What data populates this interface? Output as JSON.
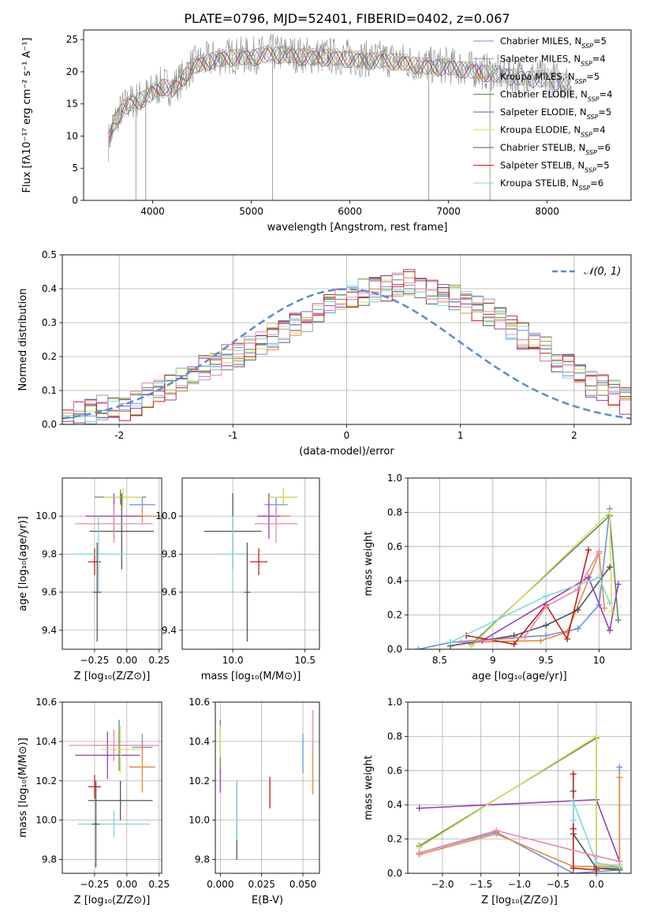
{
  "figure": {
    "title": "PLATE=0796, MJD=52401, FIBERID=0402, z=0.067"
  },
  "colors": {
    "series": [
      "#6f8fe0",
      "#9a9a9a",
      "#e8893a",
      "#5a8f5a",
      "#9b3cb8",
      "#d8e05a",
      "#555555",
      "#c0201a",
      "#7fd8e0",
      "#e88ab0"
    ],
    "gauss": "#5b8bd6"
  },
  "chart_data": [
    {
      "type": "line",
      "xlabel": "wavelength [Angstrom, rest frame]",
      "ylabel": "Flux [fλ10⁻¹⁷ erg cm⁻² s⁻¹ A⁻¹]",
      "xlim": [
        3300,
        8850
      ],
      "ylim": [
        0,
        26.5
      ],
      "xticks": [
        4000,
        5000,
        6000,
        7000,
        8000
      ],
      "yticks": [
        0,
        5,
        10,
        15,
        20,
        25
      ],
      "grid": false,
      "legend_position": "top-right",
      "legend": [
        "Chabrier MILES, N_SSP=5",
        "Salpeter MILES, N_SSP=4",
        "Kroupa MILES, N_SSP=5",
        "Chabrier ELODIE, N_SSP=4",
        "Salpeter ELODIE, N_SSP=5",
        "Kroupa ELODIE, N_SSP=4",
        "Chabrier STELIB, N_SSP=6",
        "Salpeter STELIB, N_SSP=5",
        "Kroupa STELIB, N_SSP=6"
      ],
      "data_x": [
        3550,
        3600,
        3700,
        3800,
        3900,
        4000,
        4100,
        4200,
        4300,
        4400,
        4600,
        4800,
        5000,
        5200,
        5400,
        5600,
        5800,
        6000,
        6200,
        6400,
        6600,
        6800,
        7000,
        7200,
        7400,
        7600,
        7800,
        8000,
        8200,
        8400,
        8800
      ],
      "data_y": [
        9,
        12,
        14.5,
        15.5,
        16,
        17,
        18,
        17.5,
        19,
        21,
        22,
        22.5,
        22.5,
        23,
        22.8,
        22.5,
        22.5,
        22.2,
        22,
        22,
        21.5,
        21,
        21,
        20.5,
        20,
        19.5,
        19.2,
        19,
        18.5,
        18,
        17.5
      ]
    },
    {
      "type": "bar",
      "xlabel": "(data-model)/error",
      "ylabel": "Normed distribution",
      "xlim": [
        -2.5,
        2.5
      ],
      "ylim": [
        0,
        0.5
      ],
      "xticks": [
        -2,
        -1,
        0,
        1,
        2
      ],
      "yticks": [
        0.0,
        0.1,
        0.2,
        0.3,
        0.4,
        0.5
      ],
      "grid": true,
      "legend_position": "top-right",
      "legend": [
        "𝒩(0, 1)"
      ],
      "bin_width": 0.1,
      "bin_start": -2.5,
      "hist_values": [
        0.02,
        0.03,
        0.04,
        0.05,
        0.05,
        0.05,
        0.06,
        0.09,
        0.1,
        0.11,
        0.13,
        0.14,
        0.17,
        0.18,
        0.2,
        0.2,
        0.22,
        0.24,
        0.26,
        0.28,
        0.3,
        0.31,
        0.34,
        0.35,
        0.37,
        0.38,
        0.39,
        0.4,
        0.4,
        0.41,
        0.42,
        0.4,
        0.39,
        0.38,
        0.37,
        0.36,
        0.34,
        0.33,
        0.31,
        0.29,
        0.26,
        0.24,
        0.22,
        0.19,
        0.17,
        0.15,
        0.12,
        0.11,
        0.09,
        0.07,
        0.06
      ]
    },
    {
      "type": "scatter",
      "xlabel": "Z [log₁₀(Z/Z⊙)]",
      "ylabel": "age  [log₁₀(age/yr)]",
      "xlim": [
        -0.5,
        0.27
      ],
      "ylim": [
        9.3,
        10.2
      ],
      "xticks": [
        -0.25,
        0.0,
        0.25
      ],
      "xticklabels": [
        "−0.25",
        "0.00",
        "0.25"
      ],
      "yticks": [
        9.4,
        9.6,
        9.8,
        10.0
      ],
      "grid": true,
      "points": [
        {
          "x": 0.12,
          "y": 10.06,
          "xe": 0.1,
          "ye": 0.04,
          "c": 0
        },
        {
          "x": -0.05,
          "y": 10.1,
          "xe": 0.2,
          "ye": 0.04,
          "c": 3
        },
        {
          "x": 0.12,
          "y": 10.0,
          "xe": 0.14,
          "ye": 0.04,
          "c": 2
        },
        {
          "x": -0.1,
          "y": 10.0,
          "xe": 0.22,
          "ye": 0.12,
          "c": 4
        },
        {
          "x": -0.03,
          "y": 10.1,
          "xe": 0.15,
          "ye": 0.05,
          "c": 5
        },
        {
          "x": -0.04,
          "y": 9.92,
          "xe": 0.25,
          "ye": 0.2,
          "c": 6
        },
        {
          "x": -0.25,
          "y": 9.76,
          "xe": 0.05,
          "ye": 0.07,
          "c": 7
        },
        {
          "x": -0.22,
          "y": 9.8,
          "xe": 0.2,
          "ye": 0.2,
          "c": 8
        },
        {
          "x": -0.1,
          "y": 9.96,
          "xe": 0.3,
          "ye": 0.1,
          "c": 9
        },
        {
          "x": -0.23,
          "y": 9.6,
          "xe": 0.03,
          "ye": 0.26,
          "c": 6
        }
      ]
    },
    {
      "type": "scatter",
      "xlabel": "mass [log₁₀(M/M⊙)]",
      "ylabel": "",
      "xlim": [
        9.65,
        10.6
      ],
      "ylim": [
        9.3,
        10.2
      ],
      "xticks": [
        10.0,
        10.5
      ],
      "xticklabels": [
        "10.0",
        "10.5"
      ],
      "yticks": [
        9.4,
        9.6,
        9.8,
        10.0
      ],
      "grid": true,
      "points": [
        {
          "x": 10.3,
          "y": 10.06,
          "xe": 0.08,
          "ye": 0.04,
          "c": 0
        },
        {
          "x": 10.35,
          "y": 10.1,
          "xe": 0.1,
          "ye": 0.04,
          "c": 3
        },
        {
          "x": 10.3,
          "y": 10.0,
          "xe": 0.1,
          "ye": 0.04,
          "c": 2
        },
        {
          "x": 10.25,
          "y": 10.0,
          "xe": 0.08,
          "ye": 0.12,
          "c": 4
        },
        {
          "x": 10.35,
          "y": 10.1,
          "xe": 0.1,
          "ye": 0.05,
          "c": 5
        },
        {
          "x": 10.0,
          "y": 9.92,
          "xe": 0.2,
          "ye": 0.2,
          "c": 6
        },
        {
          "x": 10.18,
          "y": 9.76,
          "xe": 0.06,
          "ye": 0.07,
          "c": 7
        },
        {
          "x": 10.0,
          "y": 9.8,
          "xe": 0.1,
          "ye": 0.2,
          "c": 8
        },
        {
          "x": 10.3,
          "y": 9.96,
          "xe": 0.15,
          "ye": 0.1,
          "c": 9
        },
        {
          "x": 10.1,
          "y": 9.6,
          "xe": 0.02,
          "ye": 0.26,
          "c": 6
        }
      ]
    },
    {
      "type": "line",
      "xlabel": "age  [log₁₀(age/yr)]",
      "ylabel": "mass weight",
      "xlim": [
        8.2,
        10.3
      ],
      "ylim": [
        0.0,
        1.0
      ],
      "xticks": [
        8.5,
        9.0,
        9.5,
        10.0
      ],
      "yticks": [
        0.0,
        0.2,
        0.4,
        0.6,
        0.8,
        1.0
      ],
      "grid": true,
      "series": [
        {
          "c": 0,
          "x": [
            8.3,
            8.6,
            9.0,
            9.5,
            9.8,
            10.0,
            10.1
          ],
          "y": [
            0.0,
            0.04,
            0.06,
            0.08,
            0.12,
            0.26,
            0.82
          ]
        },
        {
          "c": 3,
          "x": [
            8.8,
            10.1,
            10.18
          ],
          "y": [
            0.03,
            0.78,
            0.17
          ]
        },
        {
          "c": 2,
          "x": [
            8.7,
            9.45,
            9.7,
            10.0,
            10.05
          ],
          "y": [
            0.04,
            0.05,
            0.1,
            0.56,
            0.24
          ]
        },
        {
          "c": 4,
          "x": [
            8.9,
            9.9,
            10.1,
            10.18
          ],
          "y": [
            0.05,
            0.42,
            0.11,
            0.38
          ]
        },
        {
          "c": 5,
          "x": [
            8.8,
            10.1,
            10.12
          ],
          "y": [
            0.02,
            0.8,
            0.22
          ]
        },
        {
          "c": 6,
          "x": [
            8.6,
            9.2,
            9.5,
            9.8,
            10.1
          ],
          "y": [
            0.02,
            0.08,
            0.14,
            0.23,
            0.48
          ]
        },
        {
          "c": 7,
          "x": [
            8.75,
            9.2,
            9.5,
            9.7,
            9.9
          ],
          "y": [
            0.08,
            0.03,
            0.26,
            0.06,
            0.58
          ]
        },
        {
          "c": 8,
          "x": [
            8.6,
            9.5,
            10.0,
            10.1
          ],
          "y": [
            0.04,
            0.31,
            0.42,
            0.27
          ]
        },
        {
          "c": 9,
          "x": [
            8.7,
            9.3,
            9.5,
            9.8,
            10.0
          ],
          "y": [
            0.04,
            0.07,
            0.25,
            0.35,
            0.57
          ]
        }
      ]
    },
    {
      "type": "scatter",
      "xlabel": "Z [log₁₀(Z/Z⊙)]",
      "ylabel": "mass [log₁₀(M/M⊙)]",
      "xlim": [
        -0.5,
        0.27
      ],
      "ylim": [
        9.73,
        10.6
      ],
      "xticks": [
        -0.25,
        0.0,
        0.25
      ],
      "xticklabels": [
        "−0.25",
        "0.00",
        "0.25"
      ],
      "yticks": [
        9.8,
        10.0,
        10.2,
        10.4,
        10.6
      ],
      "grid": true,
      "points": [
        {
          "x": 0.12,
          "y": 10.37,
          "xe": 0.08,
          "ye": 0.07,
          "c": 0
        },
        {
          "x": -0.06,
          "y": 10.38,
          "xe": 0.2,
          "ye": 0.13,
          "c": 3
        },
        {
          "x": 0.12,
          "y": 10.27,
          "xe": 0.1,
          "ye": 0.13,
          "c": 2
        },
        {
          "x": -0.15,
          "y": 10.33,
          "xe": 0.25,
          "ye": 0.12,
          "c": 4
        },
        {
          "x": -0.05,
          "y": 10.36,
          "xe": 0.15,
          "ye": 0.12,
          "c": 5
        },
        {
          "x": -0.05,
          "y": 10.1,
          "xe": 0.25,
          "ye": 0.1,
          "c": 6
        },
        {
          "x": -0.25,
          "y": 10.17,
          "xe": 0.05,
          "ye": 0.06,
          "c": 7
        },
        {
          "x": -0.1,
          "y": 9.98,
          "xe": 0.28,
          "ye": 0.07,
          "c": 8
        },
        {
          "x": -0.1,
          "y": 10.38,
          "xe": 0.35,
          "ye": 0.08,
          "c": 9
        },
        {
          "x": -0.24,
          "y": 9.98,
          "xe": 0.03,
          "ye": 0.22,
          "c": 6
        }
      ]
    },
    {
      "type": "scatter",
      "xlabel": "E(B-V)",
      "ylabel": "",
      "xlim": [
        -0.003,
        0.06
      ],
      "ylim": [
        9.73,
        10.6
      ],
      "xticks": [
        0.0,
        0.025,
        0.05
      ],
      "xticklabels": [
        "0.000",
        "0.025",
        "0.050"
      ],
      "yticks": [
        9.8,
        10.0,
        10.2,
        10.4,
        10.6
      ],
      "grid": true,
      "points": [
        {
          "x": 0.0,
          "y": 10.37,
          "xe": 0,
          "ye": 0.14,
          "c": 3
        },
        {
          "x": 0.0,
          "y": 10.2,
          "xe": 0,
          "ye": 0.06,
          "c": 4
        },
        {
          "x": 0.0,
          "y": 10.4,
          "xe": 0,
          "ye": 0.08,
          "c": 5
        },
        {
          "x": 0.01,
          "y": 10.0,
          "xe": 0,
          "ye": 0.2,
          "c": 6
        },
        {
          "x": 0.01,
          "y": 10.05,
          "xe": 0,
          "ye": 0.15,
          "c": 8
        },
        {
          "x": 0.03,
          "y": 10.14,
          "xe": 0,
          "ye": 0.08,
          "c": 7
        },
        {
          "x": 0.05,
          "y": 10.34,
          "xe": 0,
          "ye": 0.1,
          "c": 0
        },
        {
          "x": 0.056,
          "y": 10.27,
          "xe": 0,
          "ye": 0.14,
          "c": 2
        },
        {
          "x": 0.056,
          "y": 10.46,
          "xe": 0,
          "ye": 0.1,
          "c": 9
        }
      ]
    },
    {
      "type": "line",
      "xlabel": "Z [log₁₀(Z/Z⊙)]",
      "ylabel": "mass weight",
      "xlim": [
        -2.45,
        0.45
      ],
      "ylim": [
        0.0,
        1.0
      ],
      "xticks": [
        -2.0,
        -1.5,
        -1.0,
        -0.5,
        0.0
      ],
      "xticklabels": [
        "−2.0",
        "−1.5",
        "−1.0",
        "−0.5",
        "0.0"
      ],
      "yticks": [
        0.0,
        0.2,
        0.4,
        0.6,
        0.8,
        1.0
      ],
      "grid": true,
      "series": [
        {
          "c": 0,
          "x": [
            -2.3,
            -1.3,
            -0.3,
            0.3,
            0.3
          ],
          "y": [
            0.12,
            0.24,
            0.0,
            0.02,
            0.62
          ]
        },
        {
          "c": 3,
          "x": [
            -2.3,
            0.0,
            0.0,
            0.3
          ],
          "y": [
            0.16,
            0.79,
            0.03,
            0.03
          ]
        },
        {
          "c": 2,
          "x": [
            -2.3,
            -1.3,
            -0.3,
            0.3,
            0.3
          ],
          "y": [
            0.11,
            0.23,
            0.04,
            0.04,
            0.56
          ]
        },
        {
          "c": 4,
          "x": [
            -2.3,
            0.0,
            0.3
          ],
          "y": [
            0.38,
            0.43,
            0.07
          ]
        },
        {
          "c": 5,
          "x": [
            -2.3,
            0.0,
            0.0,
            0.3
          ],
          "y": [
            0.15,
            0.8,
            0.05,
            0.05
          ]
        },
        {
          "c": 6,
          "x": [
            -0.3,
            -0.3,
            0.0,
            0.3
          ],
          "y": [
            0.48,
            0.23,
            0.03,
            0.02
          ]
        },
        {
          "c": 7,
          "x": [
            -0.3,
            -0.3,
            -0.3,
            0.0
          ],
          "y": [
            0.58,
            0.26,
            0.03,
            0.02
          ]
        },
        {
          "c": 8,
          "x": [
            -0.3,
            -0.3,
            0.0,
            0.3
          ],
          "y": [
            0.31,
            0.42,
            0.06,
            0.04
          ]
        },
        {
          "c": 9,
          "x": [
            -2.3,
            -1.3,
            0.0,
            0.3
          ],
          "y": [
            0.12,
            0.25,
            0.1,
            0.07
          ]
        }
      ]
    }
  ]
}
